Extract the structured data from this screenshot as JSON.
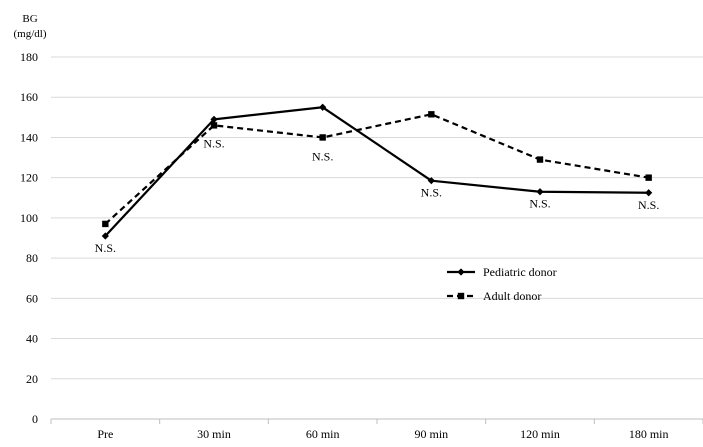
{
  "chart_data": {
    "type": "line",
    "ylabel_line1": "BG",
    "ylabel_line2": "(mg/dl)",
    "categories": [
      "Pre",
      "30 min",
      "60 min",
      "90 min",
      "120 min",
      "180 min"
    ],
    "ylim": [
      0,
      180
    ],
    "yticks": [
      "0",
      "20",
      "40",
      "60",
      "80",
      "100",
      "120",
      "140",
      "160",
      "180"
    ],
    "grid": true,
    "legend_position": "lower-right",
    "series": [
      {
        "name": "Pediatric  donor",
        "values": [
          91,
          149,
          155,
          118.5,
          113,
          112.5
        ],
        "style": "solid",
        "marker": "diamond",
        "color": "#000000"
      },
      {
        "name": "Adult  donor",
        "values": [
          97,
          146,
          140,
          151.5,
          129,
          120
        ],
        "style": "dashed",
        "marker": "square",
        "color": "#000000"
      }
    ],
    "annotations": [
      {
        "text": "N.S.",
        "category": "Pre"
      },
      {
        "text": "N.S.",
        "category": "30 min"
      },
      {
        "text": "N.S.",
        "category": "60 min"
      },
      {
        "text": "N.S.",
        "category": "90 min"
      },
      {
        "text": "N.S.",
        "category": "120 min"
      },
      {
        "text": "N.S.",
        "category": "180 min"
      }
    ]
  }
}
